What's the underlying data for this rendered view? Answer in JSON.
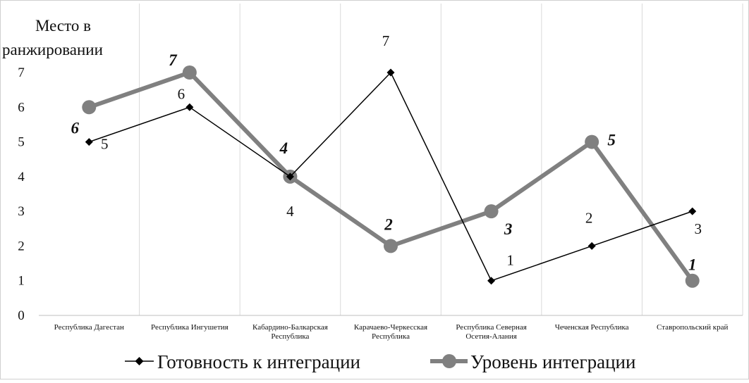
{
  "chart_data": {
    "type": "line",
    "ylabel_lines": [
      "Место в",
      "ранжировании"
    ],
    "ylim": [
      0,
      7
    ],
    "yticks": [
      0,
      1,
      2,
      3,
      4,
      5,
      6,
      7
    ],
    "categories": [
      [
        "Республика Дагестан"
      ],
      [
        "Республика Ингушетия"
      ],
      [
        "Кабардино-Балкарская",
        "Республика"
      ],
      [
        "Карачаево-Черкесская",
        "Республика"
      ],
      [
        "Республика Северная",
        "Осетия-Алания"
      ],
      [
        "Чеченская Республика"
      ],
      [
        "Ставропольский край"
      ]
    ],
    "series": [
      {
        "name": "Готовность к интеграции",
        "values": [
          5,
          6,
          4,
          7,
          1,
          2,
          3
        ],
        "color": "#000000",
        "marker": "diamond"
      },
      {
        "name": "Уровень интеграции",
        "values": [
          6,
          7,
          4,
          2,
          3,
          5,
          1
        ],
        "color": "#808080",
        "marker": "circle"
      }
    ],
    "grid": {
      "vertical": true,
      "horizontal": false
    },
    "legend_position": "bottom"
  }
}
